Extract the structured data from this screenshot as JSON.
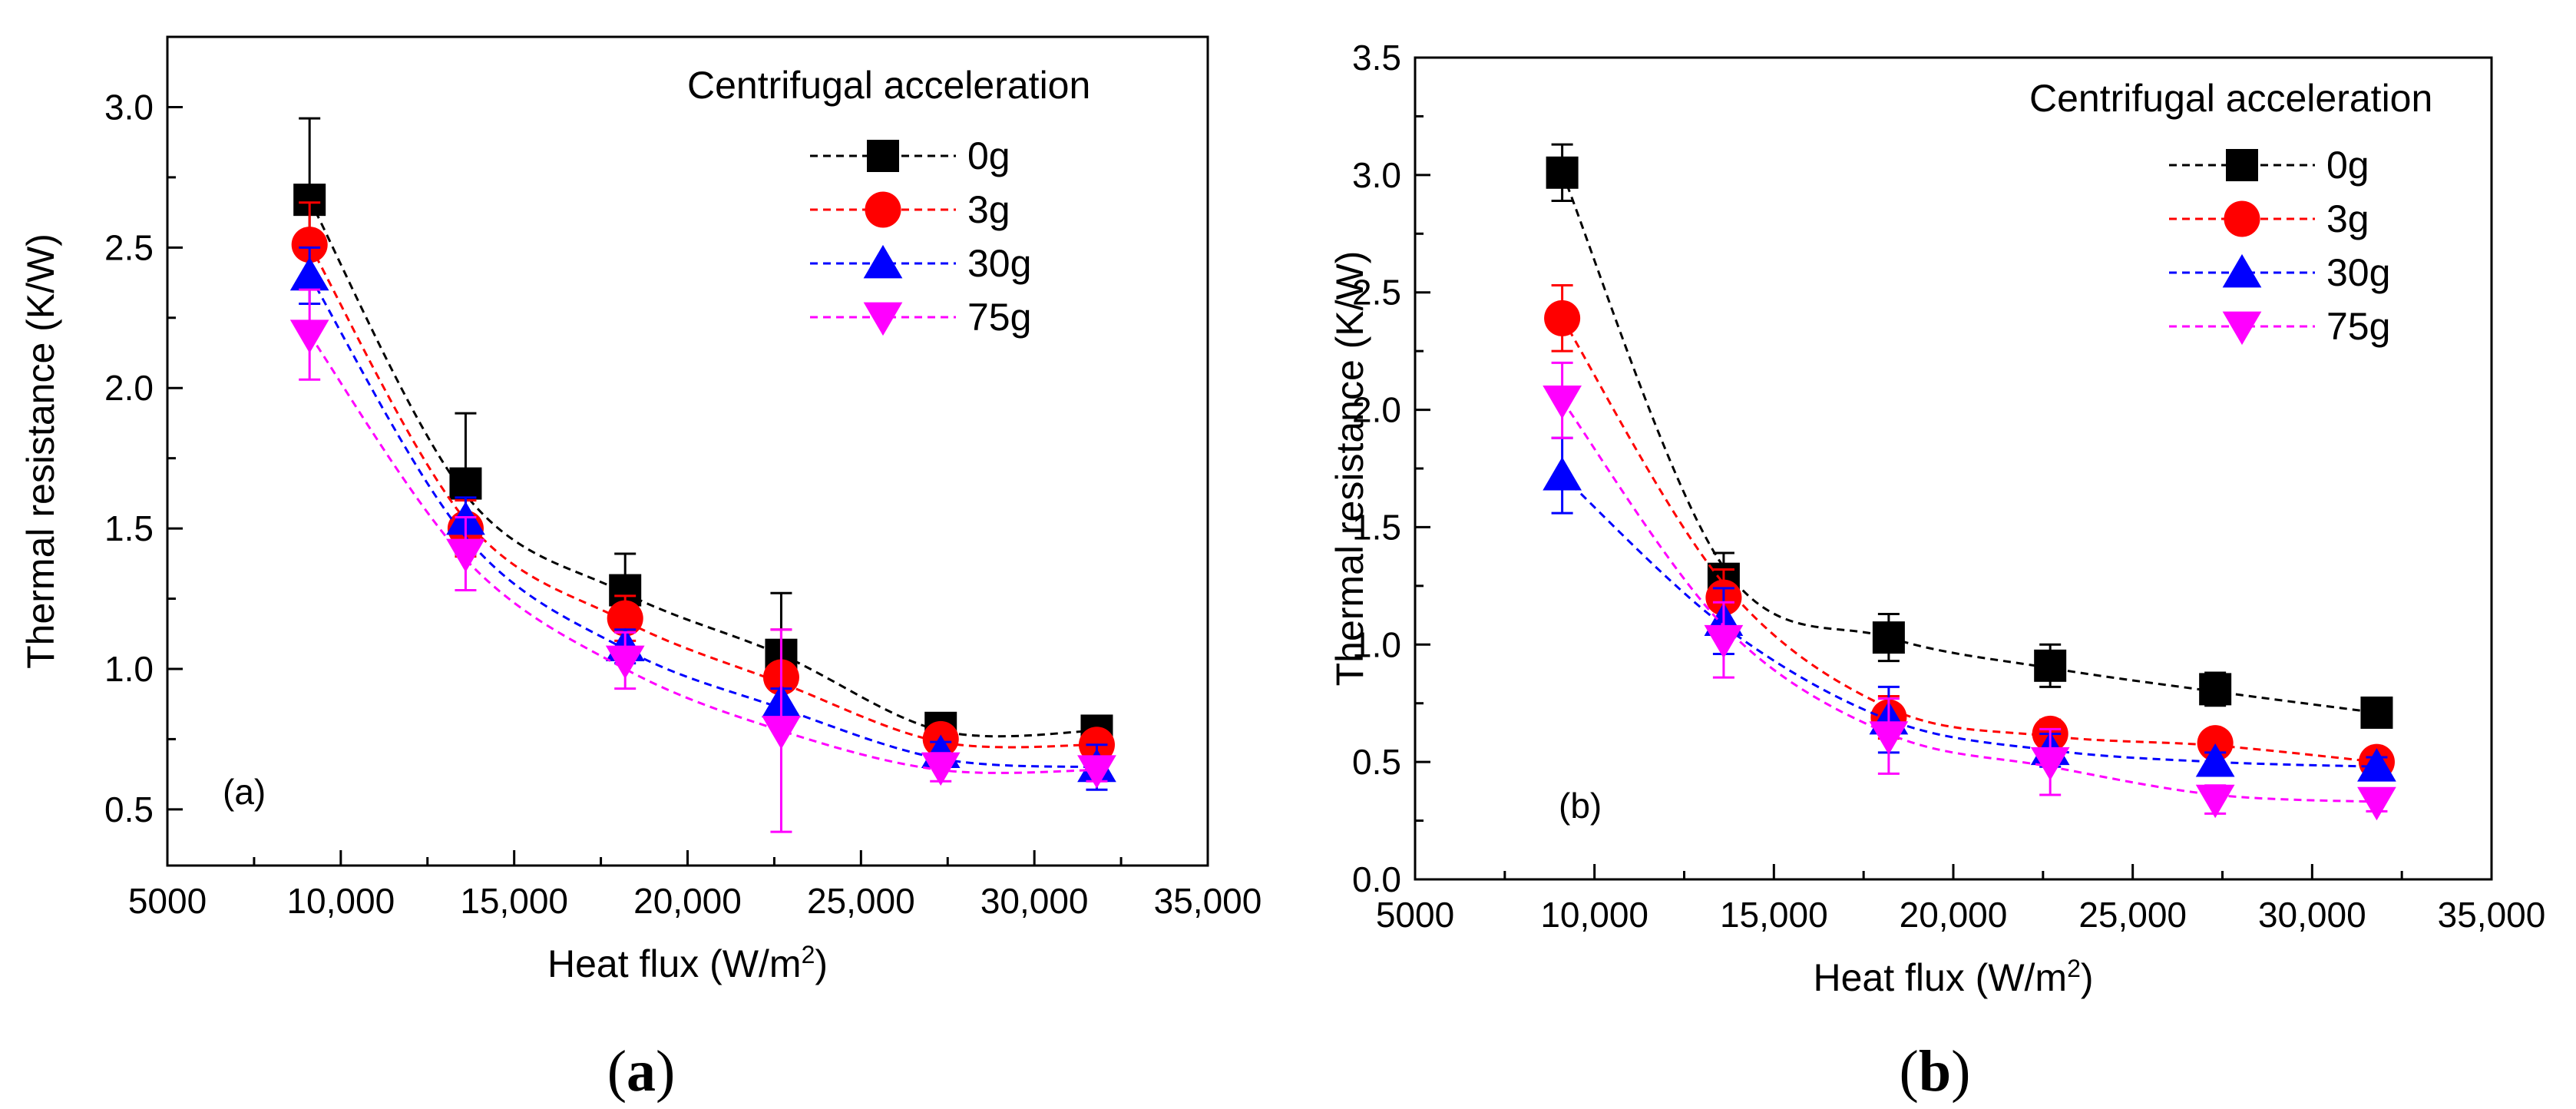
{
  "chart_data": [
    {
      "type": "line",
      "panel_label": "(a)",
      "caption_letter": "a",
      "xlabel": "Heat flux (W/m",
      "xlabel_sup": "2",
      "xlabel_suffix": ")",
      "ylabel": "Thermal resistance (K/W)",
      "xlim": [
        5000,
        35000
      ],
      "ylim": [
        0.3,
        3.25
      ],
      "xticks": [
        5000,
        10000,
        15000,
        20000,
        25000,
        30000,
        35000
      ],
      "xtick_labels": [
        "5000",
        "10,000",
        "15,000",
        "20,000",
        "25,000",
        "30,000",
        "35,000"
      ],
      "yticks": [
        0.5,
        1.0,
        1.5,
        2.0,
        2.5,
        3.0
      ],
      "ytick_labels": [
        "0.5",
        "1.0",
        "1.5",
        "2.0",
        "2.5",
        "3.0"
      ],
      "legend_title": "Centrifugal acceleration",
      "x": [
        9100,
        13600,
        18200,
        22700,
        27300,
        31800
      ],
      "series": [
        {
          "name": "0g",
          "color": "#000000",
          "marker": "square",
          "values": [
            2.67,
            1.66,
            1.28,
            1.05,
            0.79,
            0.78
          ],
          "errors": [
            0.29,
            0.25,
            0.13,
            0.22,
            0.03,
            0.03
          ],
          "fit": [
            2.67,
            1.62,
            1.27,
            1.05,
            0.78,
            0.78
          ]
        },
        {
          "name": "3g",
          "color": "#ff0000",
          "marker": "circle",
          "values": [
            2.51,
            1.5,
            1.18,
            0.97,
            0.75,
            0.73
          ],
          "errors": [
            0.15,
            0.1,
            0.08,
            0.17,
            0.04,
            0.03
          ],
          "fit": [
            2.51,
            1.53,
            1.17,
            0.95,
            0.74,
            0.73
          ]
        },
        {
          "name": "30g",
          "color": "#0000ff",
          "marker": "triangle-up",
          "values": [
            2.4,
            1.53,
            1.08,
            0.88,
            0.7,
            0.65
          ],
          "errors": [
            0.1,
            0.08,
            0.06,
            0.05,
            0.04,
            0.08
          ],
          "fit": [
            2.4,
            1.47,
            1.07,
            0.86,
            0.68,
            0.65
          ]
        },
        {
          "name": "75g",
          "color": "#ff00ff",
          "marker": "triangle-down",
          "values": [
            2.19,
            1.41,
            1.03,
            0.78,
            0.65,
            0.64
          ],
          "errors": [
            0.16,
            0.13,
            0.1,
            0.36,
            0.05,
            0.04
          ],
          "fit": [
            2.19,
            1.39,
            1.0,
            0.78,
            0.64,
            0.64
          ]
        }
      ]
    },
    {
      "type": "line",
      "panel_label": "(b)",
      "caption_letter": "b",
      "xlabel": "Heat flux (W/m",
      "xlabel_sup": "2",
      "xlabel_suffix": ")",
      "ylabel": "Thermal resistance (K/W)",
      "xlim": [
        5000,
        35000
      ],
      "ylim": [
        0.0,
        3.5
      ],
      "xticks": [
        5000,
        10000,
        15000,
        20000,
        25000,
        30000,
        35000
      ],
      "xtick_labels": [
        "5000",
        "10,000",
        "15,000",
        "20,000",
        "25,000",
        "30,000",
        "35,000"
      ],
      "yticks": [
        0.0,
        0.5,
        1.0,
        1.5,
        2.0,
        2.5,
        3.0,
        3.5
      ],
      "ytick_labels": [
        "0.0",
        "0.5",
        "1.0",
        "1.5",
        "2.0",
        "2.5",
        "3.0",
        "3.5"
      ],
      "legend_title": "Centrifugal acceleration",
      "x": [
        9100,
        13600,
        18200,
        22700,
        27300,
        31800
      ],
      "series": [
        {
          "name": "0g",
          "color": "#000000",
          "marker": "square",
          "values": [
            3.01,
            1.28,
            1.03,
            0.91,
            0.81,
            0.71
          ],
          "errors": [
            0.12,
            0.11,
            0.1,
            0.09,
            0.07,
            0.03
          ],
          "fit": [
            3.01,
            1.33,
            1.03,
            0.9,
            0.8,
            0.71
          ]
        },
        {
          "name": "3g",
          "color": "#ff0000",
          "marker": "circle",
          "values": [
            2.39,
            1.2,
            0.69,
            0.62,
            0.58,
            0.5
          ],
          "errors": [
            0.14,
            0.12,
            0.09,
            0.06,
            0.03,
            0.05
          ],
          "fit": [
            2.39,
            1.26,
            0.73,
            0.61,
            0.57,
            0.5
          ]
        },
        {
          "name": "30g",
          "color": "#0000ff",
          "marker": "triangle-up",
          "values": [
            1.72,
            1.1,
            0.68,
            0.55,
            0.5,
            0.48
          ],
          "errors": [
            0.16,
            0.14,
            0.14,
            0.07,
            0.04,
            0.04
          ],
          "fit": [
            1.72,
            1.08,
            0.68,
            0.55,
            0.5,
            0.48
          ]
        },
        {
          "name": "75g",
          "color": "#ff00ff",
          "marker": "triangle-down",
          "values": [
            2.04,
            1.02,
            0.61,
            0.5,
            0.34,
            0.33
          ],
          "errors": [
            0.16,
            0.16,
            0.16,
            0.14,
            0.06,
            0.04
          ],
          "fit": [
            2.04,
            1.08,
            0.62,
            0.48,
            0.36,
            0.33
          ]
        }
      ]
    }
  ]
}
